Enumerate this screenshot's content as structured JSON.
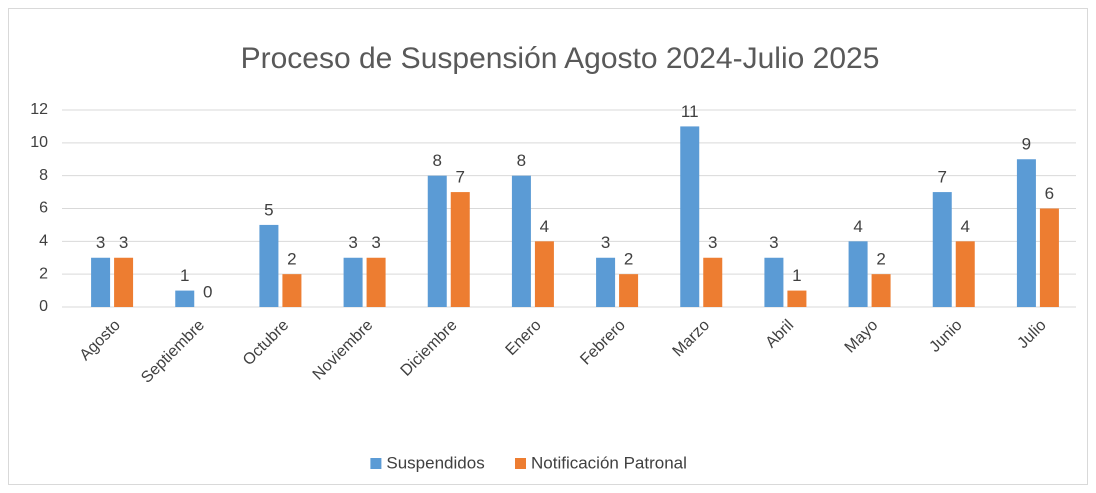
{
  "chart_data": {
    "type": "bar",
    "title": "Proceso de Suspensión Agosto 2024-Julio 2025",
    "categories": [
      "Agosto",
      "Septiembre",
      "Octubre",
      "Noviembre",
      "Diciembre",
      "Enero",
      "Febrero",
      "Marzo",
      "Abril",
      "Mayo",
      "Junio",
      "Julio"
    ],
    "series": [
      {
        "name": "Suspendidos",
        "color": "#5b9bd5",
        "values": [
          3,
          1,
          5,
          3,
          8,
          8,
          3,
          11,
          3,
          4,
          7,
          9
        ]
      },
      {
        "name": "Notificación Patronal",
        "color": "#ed7d31",
        "values": [
          3,
          0,
          2,
          3,
          7,
          4,
          2,
          3,
          1,
          2,
          4,
          6
        ]
      }
    ],
    "ylim": [
      0,
      12
    ],
    "yticks": [
      0,
      2,
      4,
      6,
      8,
      10,
      12
    ],
    "grid": true,
    "legend": "bottom"
  }
}
